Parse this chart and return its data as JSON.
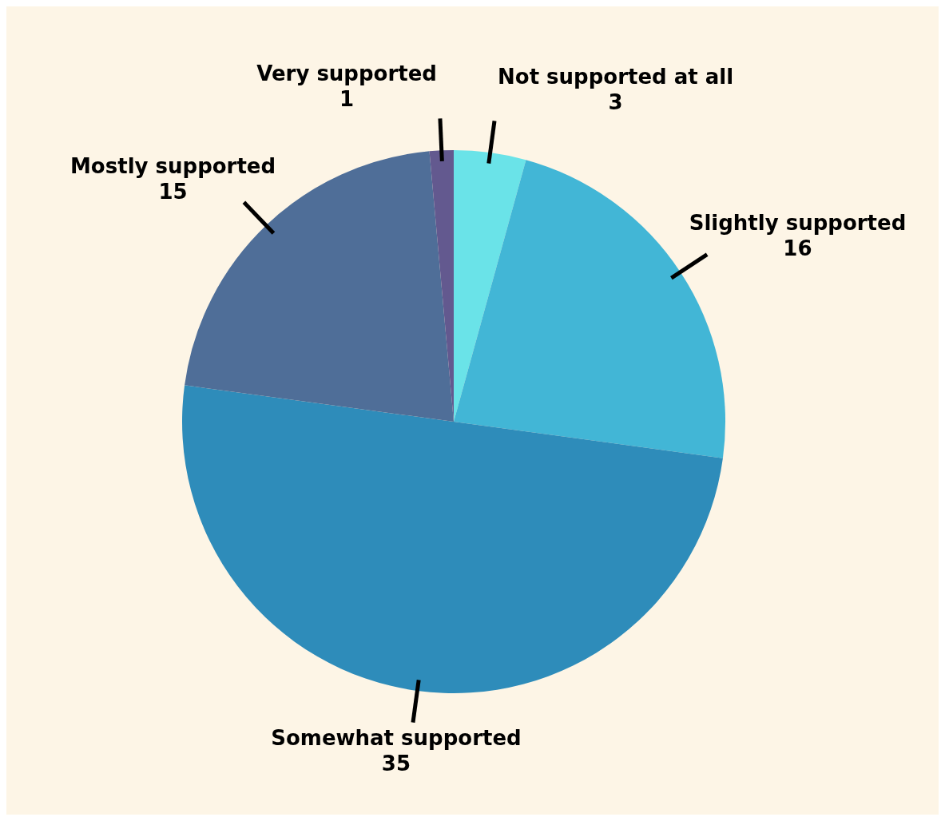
{
  "chart_data": {
    "type": "pie",
    "categories": [
      "Not supported at all",
      "Slightly supported",
      "Somewhat supported",
      "Mostly supported",
      "Very supported"
    ],
    "values": [
      3,
      16,
      35,
      15,
      1
    ],
    "colors": [
      "#6ae3e8",
      "#42b6d6",
      "#2e8cba",
      "#4f6e98",
      "#63598f"
    ],
    "data_labels": true,
    "legend": false
  }
}
